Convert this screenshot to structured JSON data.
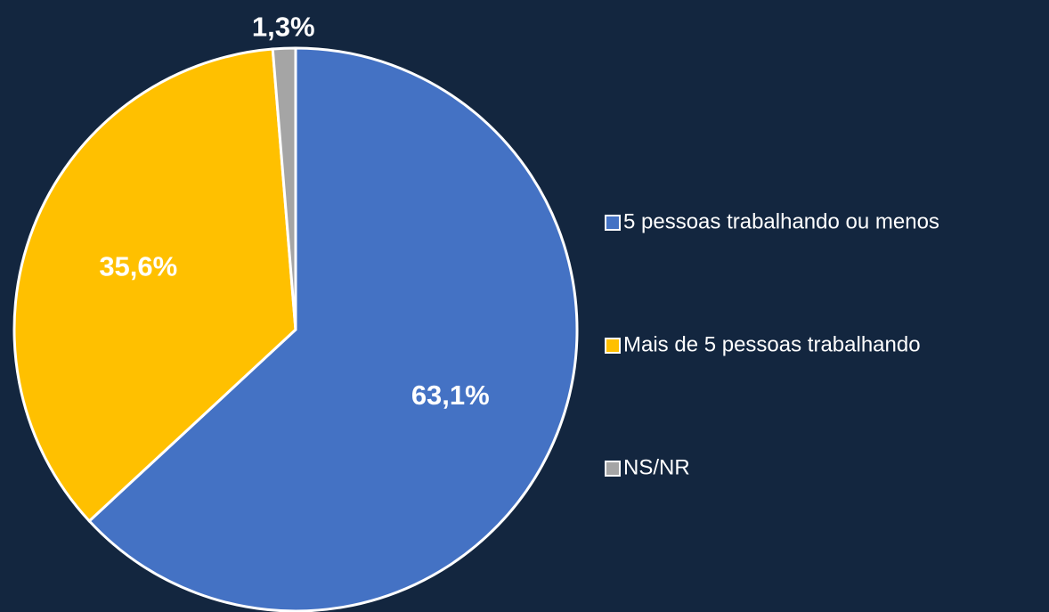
{
  "chart_data": {
    "type": "pie",
    "categories": [
      "5 pessoas trabalhando ou menos",
      "Mais de 5 pessoas trabalhando",
      "NS/NR"
    ],
    "values": [
      63.1,
      35.6,
      1.3
    ],
    "value_labels": [
      "63,1%",
      "35,6%",
      "1,3%"
    ],
    "colors": [
      "#4472c4",
      "#ffc000",
      "#a5a5a5"
    ],
    "legend": "right"
  }
}
